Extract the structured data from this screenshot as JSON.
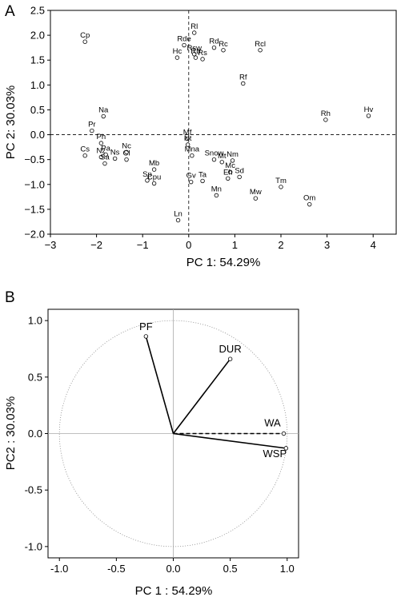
{
  "chart_data": [
    {
      "panel": "A",
      "type": "scatter",
      "xlabel": "PC 1: 54.29%",
      "ylabel": "PC 2: 30.03%",
      "xlim": [
        -3,
        4.5
      ],
      "ylim": [
        -2,
        2.5
      ],
      "xticks": [
        -3,
        -2,
        -1,
        0,
        1,
        2,
        3,
        4
      ],
      "yticks": [
        2.5,
        2.0,
        1.5,
        1.0,
        0.5,
        0.0,
        -0.5,
        -1.0,
        -1.5,
        -2.0
      ],
      "reference_lines": {
        "x": 0,
        "y": 0
      },
      "points": [
        {
          "label": "Cp",
          "x": -2.25,
          "y": 1.87
        },
        {
          "label": "Rl",
          "x": 0.12,
          "y": 2.05
        },
        {
          "label": "Rde",
          "x": -0.1,
          "y": 1.8
        },
        {
          "label": "Rsw",
          "x": 0.12,
          "y": 1.62
        },
        {
          "label": "Rd",
          "x": 0.55,
          "y": 1.75
        },
        {
          "label": "Rc",
          "x": 0.75,
          "y": 1.7
        },
        {
          "label": "Rcl",
          "x": 1.55,
          "y": 1.7
        },
        {
          "label": "Hc",
          "x": -0.25,
          "y": 1.55
        },
        {
          "label": "Rb",
          "x": 0.15,
          "y": 1.55
        },
        {
          "label": "Rs",
          "x": 0.3,
          "y": 1.52
        },
        {
          "label": "Rf",
          "x": 1.18,
          "y": 1.03
        },
        {
          "label": "Rh",
          "x": 2.97,
          "y": 0.3
        },
        {
          "label": "Hv",
          "x": 3.9,
          "y": 0.38
        },
        {
          "label": "Na",
          "x": -1.85,
          "y": 0.37
        },
        {
          "label": "Pr",
          "x": -2.1,
          "y": 0.08
        },
        {
          "label": "Ph",
          "x": -1.9,
          "y": -0.17
        },
        {
          "label": "Cs",
          "x": -2.25,
          "y": -0.42
        },
        {
          "label": "Nz",
          "x": -1.9,
          "y": -0.45
        },
        {
          "label": "Pa",
          "x": -1.8,
          "y": -0.4
        },
        {
          "label": "Ns",
          "x": -1.6,
          "y": -0.48
        },
        {
          "label": "Sa",
          "x": -1.82,
          "y": -0.58
        },
        {
          "label": "Nc",
          "x": -1.35,
          "y": -0.35
        },
        {
          "label": "Cl",
          "x": -1.35,
          "y": -0.5
        },
        {
          "label": "Mf",
          "x": -0.03,
          "y": -0.08
        },
        {
          "label": "Nt",
          "x": -0.02,
          "y": -0.2
        },
        {
          "label": "Mna",
          "x": 0.07,
          "y": -0.42
        },
        {
          "label": "Snow",
          "x": 0.55,
          "y": -0.5
        },
        {
          "label": "Mt",
          "x": 0.72,
          "y": -0.55
        },
        {
          "label": "Nm",
          "x": 0.95,
          "y": -0.52
        },
        {
          "label": "Mc",
          "x": 0.9,
          "y": -0.75
        },
        {
          "label": "Eh",
          "x": 0.85,
          "y": -0.88
        },
        {
          "label": "Sd",
          "x": 1.1,
          "y": -0.85
        },
        {
          "label": "Mb",
          "x": -0.75,
          "y": -0.7
        },
        {
          "label": "Sp",
          "x": -0.9,
          "y": -0.92
        },
        {
          "label": "Cpu",
          "x": -0.75,
          "y": -0.98
        },
        {
          "label": "Gv",
          "x": 0.05,
          "y": -0.95
        },
        {
          "label": "Ta",
          "x": 0.3,
          "y": -0.93
        },
        {
          "label": "Mn",
          "x": 0.6,
          "y": -1.22
        },
        {
          "label": "Mw",
          "x": 1.45,
          "y": -1.28
        },
        {
          "label": "Tm",
          "x": 2.0,
          "y": -1.05
        },
        {
          "label": "Om",
          "x": 2.62,
          "y": -1.4
        },
        {
          "label": "Ln",
          "x": -0.23,
          "y": -1.72
        }
      ]
    },
    {
      "panel": "B",
      "type": "scatter",
      "subtype": "biplot-loadings",
      "xlabel": "PC 1 : 54.29%",
      "ylabel": "PC2 : 30.03%",
      "xlim": [
        -1.1,
        1.1
      ],
      "ylim": [
        -1.1,
        1.1
      ],
      "xticks": [
        -1.0,
        -0.5,
        0.0,
        0.5,
        1.0
      ],
      "yticks": [
        1.0,
        0.5,
        0.0,
        -0.5,
        -1.0
      ],
      "xtick_labels": [
        "-1.0",
        "-0.5",
        "0.0",
        "0.5",
        "1.0"
      ],
      "ytick_labels": [
        "1.0",
        "0.5",
        "0.0",
        "-0.5",
        "-1.0"
      ],
      "unit_circle": true,
      "vectors": [
        {
          "label": "PF",
          "x": -0.24,
          "y": 0.86,
          "style": "solid"
        },
        {
          "label": "DUR",
          "x": 0.5,
          "y": 0.66,
          "style": "solid"
        },
        {
          "label": "WA",
          "x": 0.97,
          "y": 0.0,
          "style": "dashed"
        },
        {
          "label": "WSP",
          "x": 0.99,
          "y": -0.13,
          "style": "solid"
        }
      ]
    }
  ],
  "panel_letters": {
    "a": "A",
    "b": "B"
  }
}
